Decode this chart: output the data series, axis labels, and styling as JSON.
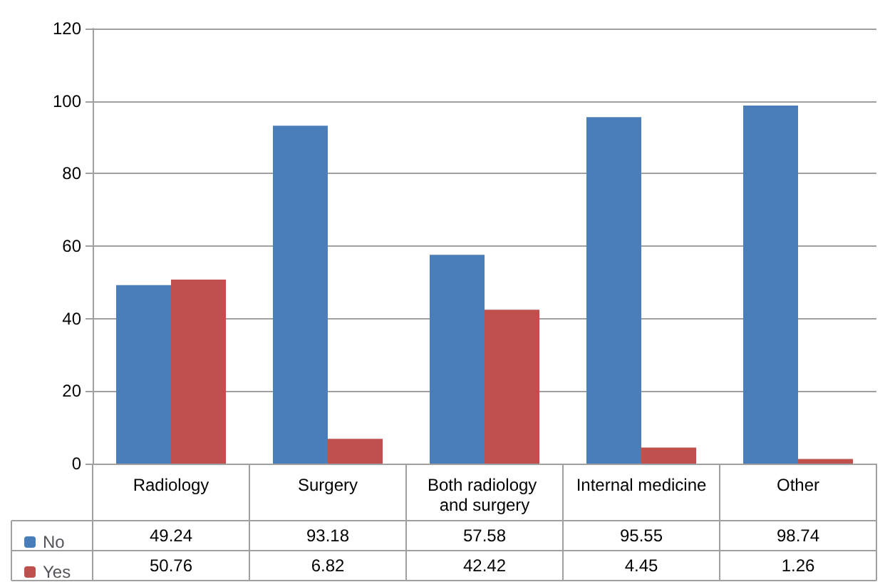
{
  "chart_data": {
    "type": "bar",
    "categories": [
      "Radiology",
      "Surgery",
      "Both radiology and surgery",
      "Internal medicine",
      "Other"
    ],
    "series": [
      {
        "name": "No",
        "color": "#4a7ebb",
        "values": [
          49.24,
          93.18,
          57.58,
          95.55,
          98.74
        ]
      },
      {
        "name": "Yes",
        "color": "#c0504d",
        "values": [
          50.76,
          6.82,
          42.42,
          4.45,
          1.26
        ]
      }
    ],
    "ylim": [
      0,
      120
    ],
    "yticks": [
      0,
      20,
      40,
      60,
      80,
      100,
      120
    ],
    "grid": "y",
    "legend": "bottom left",
    "data_labels": true
  }
}
